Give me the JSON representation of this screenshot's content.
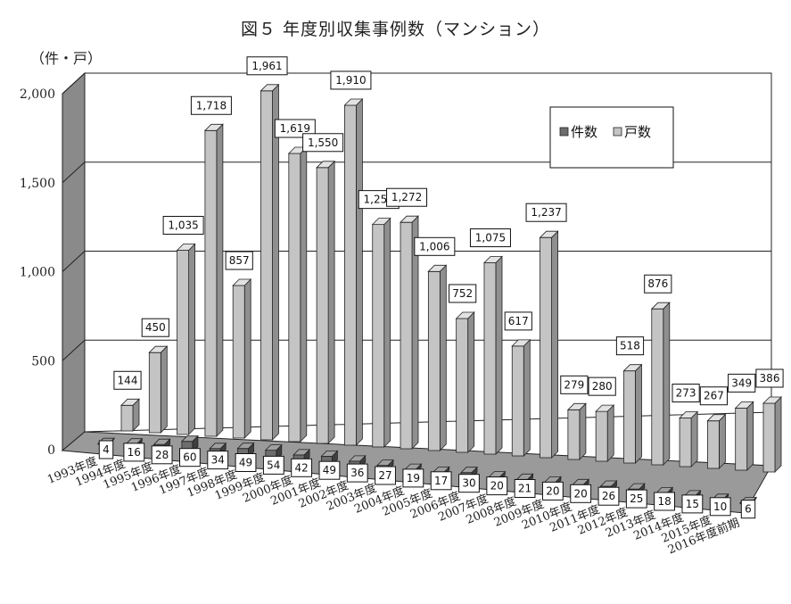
{
  "chart_data": {
    "type": "bar",
    "title": "図５ 年度別収集事例数（マンション）",
    "ylabel": "（件・戸）",
    "ylim": [
      0,
      2000
    ],
    "yticks": [
      "0",
      "500",
      "1,000",
      "1,500",
      "2,000"
    ],
    "grid": true,
    "legend_position": "top-right",
    "categories": [
      "1993年度",
      "1994年度",
      "1995年度",
      "1996年度",
      "1997年度",
      "1998年度",
      "1999年度",
      "2000年度",
      "2001年度",
      "2002年度",
      "2003年度",
      "2004年度",
      "2005年度",
      "2006年度",
      "2007年度",
      "2008年度",
      "2009年度",
      "2010年度",
      "2011年度",
      "2012年度",
      "2013年度",
      "2014年度",
      "2015年度",
      "2016年度前期"
    ],
    "series": [
      {
        "name": "件数",
        "color": "#6d6d6d",
        "values": [
          4,
          16,
          28,
          60,
          34,
          49,
          54,
          42,
          49,
          36,
          27,
          19,
          17,
          30,
          20,
          21,
          20,
          20,
          26,
          25,
          18,
          15,
          10,
          6
        ]
      },
      {
        "name": "戸数",
        "color": "#c4c4c4",
        "values": [
          144,
          450,
          1035,
          1718,
          857,
          1961,
          1619,
          1550,
          1910,
          1250,
          1272,
          1006,
          752,
          1075,
          617,
          1237,
          279,
          280,
          518,
          876,
          273,
          267,
          349,
          386
        ]
      }
    ]
  }
}
